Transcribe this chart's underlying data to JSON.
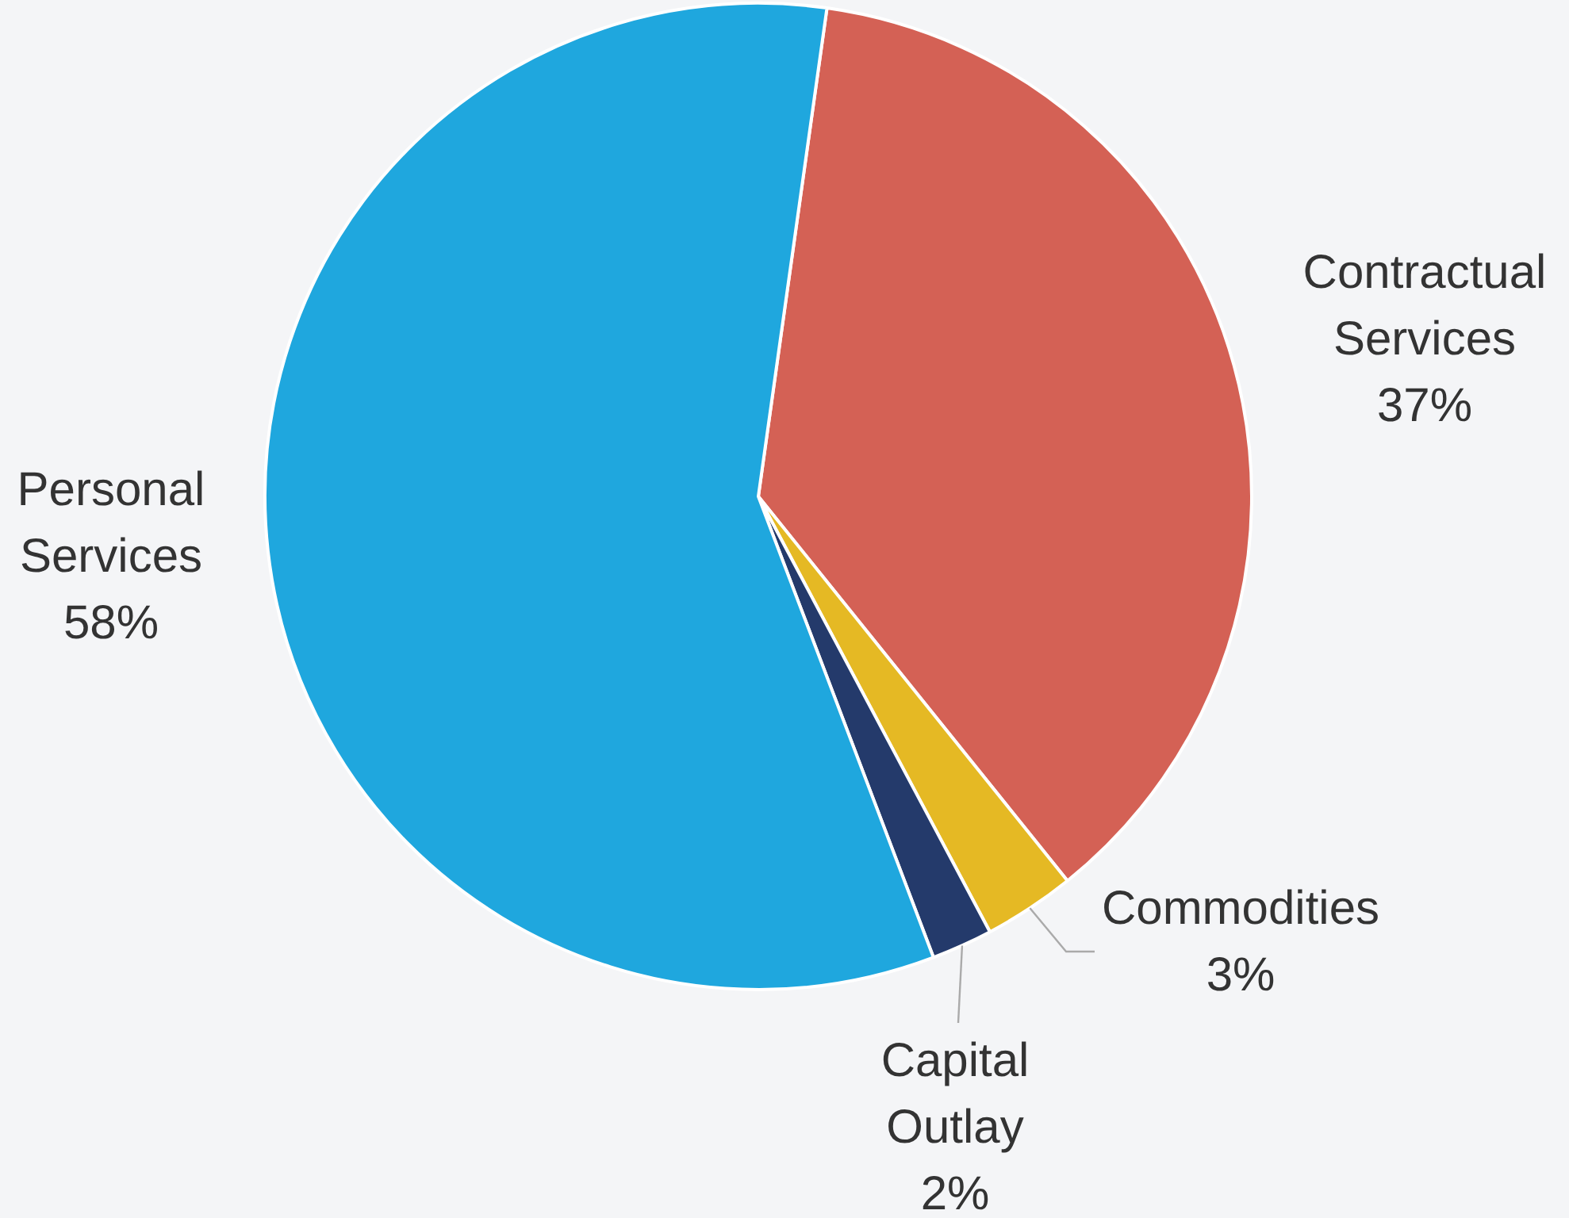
{
  "chart_data": {
    "type": "pie",
    "categories": [
      "Contractual Services",
      "Commodities",
      "Capital Outlay",
      "Personal Services"
    ],
    "values": [
      37,
      3,
      2,
      58
    ],
    "colors": [
      "#d46155",
      "#e5b924",
      "#243a6b",
      "#1fa7de"
    ],
    "value_labels": [
      "37%",
      "3%",
      "2%",
      "58%"
    ],
    "legend": false
  }
}
